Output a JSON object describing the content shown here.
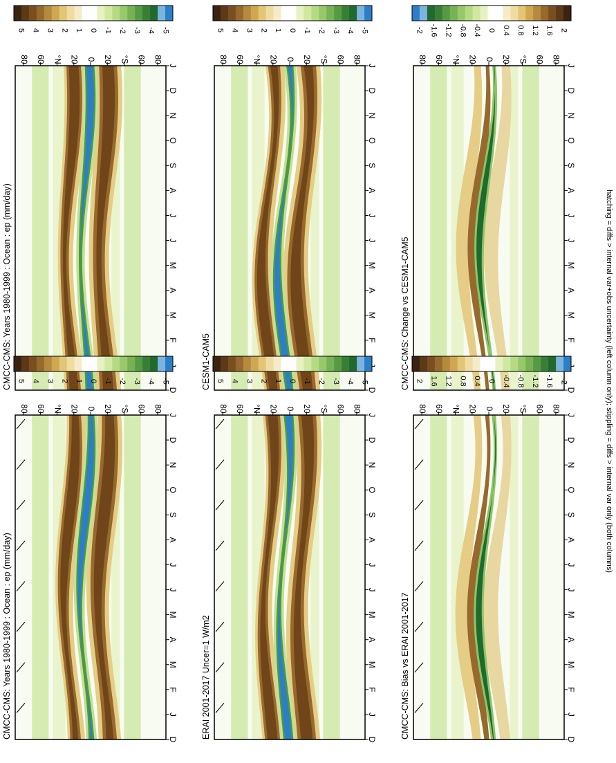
{
  "figure": {
    "footnote": "hatching = diffs > internal var+obs uncertainty (left column only); stippling = diffs > internal var only (both columns)"
  },
  "colors": {
    "full": [
      "#3a2410",
      "#5c3a18",
      "#7a4e1f",
      "#96692c",
      "#b58a3e",
      "#cfa752",
      "#e2c575",
      "#efdca0",
      "#f6ebc8",
      "#ffffff",
      "#ffffff",
      "#e6f2c0",
      "#d0e8a0",
      "#b5da85",
      "#97c86a",
      "#77b255",
      "#579a44",
      "#387f35",
      "#1f6a2c",
      "#7cb4e0",
      "#2c7fc6"
    ],
    "diff": [
      "#3a2410",
      "#5c3a18",
      "#7a4e1f",
      "#96692c",
      "#b58a3e",
      "#cfa752",
      "#e2c575",
      "#efdca0",
      "#f6ebc8",
      "#ffffff",
      "#ffffff",
      "#e6f2c0",
      "#d0e8a0",
      "#b5da85",
      "#97c86a",
      "#77b255",
      "#579a44",
      "#387f35",
      "#1f6a2c",
      "#7cb4e0",
      "#2c7fc6"
    ]
  },
  "colorbar_full_labels": [
    "5",
    "4",
    "3",
    "2",
    "1",
    "0",
    "-1",
    "-2",
    "-3",
    "-4",
    "-5"
  ],
  "colorbar_diff_labels": [
    "2",
    "1.6",
    "1.2",
    "0.8",
    "0.4",
    "0",
    "-0.4",
    "-0.8",
    "-1.2",
    "-1.6",
    "-2"
  ],
  "colorbar_diff_labels_rev": [
    "-2",
    "-1.6",
    "-1.2",
    "-0.8",
    "-0.4",
    "0",
    "0.4",
    "0.8",
    "1.2",
    "1.6",
    "2"
  ],
  "chart_data": [
    {
      "type": "heatmap",
      "title": "CMCC-CMS: Years 1980-1999 : Ocean : ep (mm/day)",
      "x": [
        "D",
        "J",
        "F",
        "M",
        "A",
        "M",
        "J",
        "J",
        "A",
        "S",
        "O",
        "N",
        "D",
        "J"
      ],
      "y_ticks": [
        "80",
        "60",
        "°N",
        "20",
        "0",
        "20",
        "°S",
        "60",
        "80"
      ],
      "hatching": true,
      "stippling": "Mar-May near equator",
      "colorbar": {
        "labels": [
          "5",
          "4",
          "3",
          "2",
          "1",
          "0",
          "-1",
          "-2",
          "-3",
          "-4",
          "-5"
        ],
        "range": [
          -5,
          5
        ]
      }
    },
    {
      "type": "heatmap",
      "title": "CMCC-CMS: Years 1980-1999 : Ocean : ep (mm/day)",
      "x": [
        "D",
        "J",
        "F",
        "M",
        "A",
        "M",
        "J",
        "J",
        "A",
        "S",
        "O",
        "N",
        "D",
        "J"
      ],
      "y_ticks": [
        "80",
        "60",
        "°N",
        "20",
        "0",
        "20",
        "°S",
        "60",
        "80"
      ],
      "hatching": false,
      "stippling": "Sep-Oct near equator",
      "colorbar": {
        "labels": [
          "5",
          "4",
          "3",
          "2",
          "1",
          "0",
          "-1",
          "-2",
          "-3",
          "-4",
          "-5"
        ],
        "range": [
          -5,
          5
        ]
      }
    },
    {
      "type": "heatmap",
      "title": "ERAI 2001-2017 Uncer=1 W/m2",
      "x": [
        "D",
        "J",
        "F",
        "M",
        "A",
        "M",
        "J",
        "J",
        "A",
        "S",
        "O",
        "N",
        "D",
        "J"
      ],
      "y_ticks": [
        "80",
        "60",
        "°N",
        "20",
        "0",
        "20",
        "°S",
        "60",
        "80"
      ],
      "hatching": true,
      "colorbar": {
        "labels": [
          "5",
          "4",
          "3",
          "2",
          "1",
          "0",
          "-1",
          "-2",
          "-3",
          "-4",
          "-5"
        ],
        "range": [
          -5,
          5
        ]
      }
    },
    {
      "type": "heatmap",
      "title": "CESM1-CAM5",
      "x": [
        "D",
        "J",
        "F",
        "M",
        "A",
        "M",
        "J",
        "J",
        "A",
        "S",
        "O",
        "N",
        "D",
        "J"
      ],
      "y_ticks": [
        "80",
        "60",
        "°N",
        "20",
        "0",
        "20",
        "°S",
        "60",
        "80"
      ],
      "hatching": false,
      "colorbar": {
        "labels": [
          "5",
          "4",
          "3",
          "2",
          "1",
          "0",
          "-1",
          "-2",
          "-3",
          "-4",
          "-5"
        ],
        "range": [
          -5,
          5
        ]
      }
    },
    {
      "type": "heatmap",
      "title": "CMCC-CMS: Bias vs ERAI 2001-2017",
      "x": [
        "D",
        "J",
        "F",
        "M",
        "A",
        "M",
        "J",
        "J",
        "A",
        "S",
        "O",
        "N",
        "D",
        "J"
      ],
      "y_ticks": [
        "80",
        "60",
        "°N",
        "20",
        "0",
        "20",
        "°S",
        "60",
        "80"
      ],
      "hatching": true,
      "colorbar": {
        "labels": [
          "2",
          "1.6",
          "1.2",
          "0.8",
          "0.4",
          "0",
          "-0.4",
          "-0.8",
          "-1.2",
          "-1.6",
          "-2"
        ],
        "range": [
          -2,
          2
        ]
      }
    },
    {
      "type": "heatmap",
      "title": "CMCC-CMS: Change vs CESM1-CAM5",
      "x": [
        "D",
        "J",
        "F",
        "M",
        "A",
        "M",
        "J",
        "J",
        "A",
        "S",
        "O",
        "N",
        "D",
        "J"
      ],
      "y_ticks": [
        "80",
        "60",
        "°N",
        "20",
        "0",
        "20",
        "°S",
        "60",
        "80"
      ],
      "hatching": false,
      "colorbar": {
        "labels": [
          "-2",
          "-1.6",
          "-1.2",
          "-0.8",
          "-0.4",
          "0",
          "0.4",
          "0.8",
          "1.2",
          "1.6",
          "2"
        ],
        "range": [
          -2,
          2
        ]
      }
    }
  ]
}
